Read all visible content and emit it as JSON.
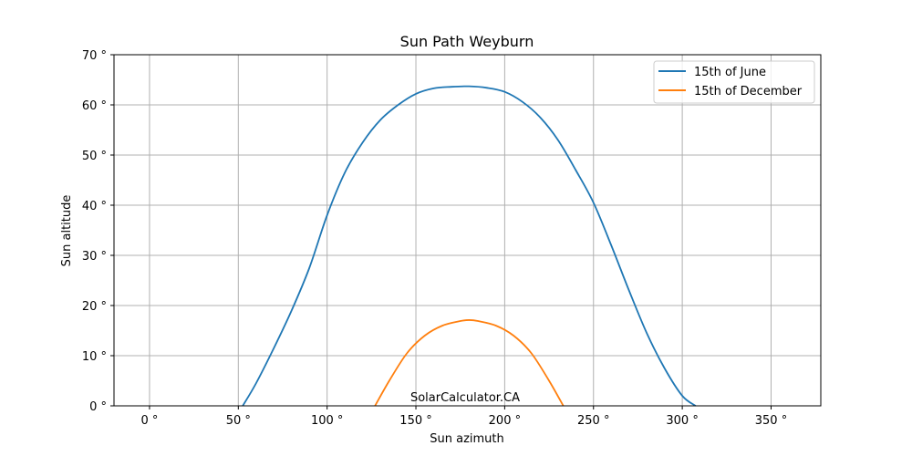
{
  "chart_data": {
    "type": "line",
    "title": "Sun Path Weyburn",
    "xlabel": "Sun azimuth",
    "ylabel": "Sun altitude",
    "xlim": [
      -20,
      378
    ],
    "ylim": [
      0,
      70
    ],
    "xticks": [
      0,
      50,
      100,
      150,
      200,
      250,
      300,
      350
    ],
    "xtick_labels": [
      "0 °",
      "50 °",
      "100 °",
      "150 °",
      "200 °",
      "250 °",
      "300 °",
      "350 °"
    ],
    "yticks": [
      0,
      10,
      20,
      30,
      40,
      50,
      60,
      70
    ],
    "ytick_labels": [
      "0 °",
      "10 °",
      "20 °",
      "30 °",
      "40 °",
      "50 °",
      "60 °",
      "70 °"
    ],
    "grid": true,
    "legend_position": "top-right",
    "series": [
      {
        "name": "15th of June",
        "color": "#1f77b4",
        "x": [
          52.5,
          60,
          70,
          80,
          90,
          100,
          110,
          120,
          130,
          140,
          150,
          160,
          170,
          180,
          190,
          200,
          210,
          220,
          230,
          240,
          250,
          260,
          270,
          280,
          290,
          300,
          307.5
        ],
        "y": [
          0,
          4.5,
          11.5,
          19,
          27.5,
          38,
          46.5,
          52.5,
          57,
          60,
          62.2,
          63.3,
          63.6,
          63.7,
          63.4,
          62.6,
          60.6,
          57.5,
          53,
          47,
          40.5,
          32,
          23,
          14.5,
          7.5,
          2,
          0
        ]
      },
      {
        "name": "15th of December",
        "color": "#ff7f0e",
        "x": [
          127,
          135,
          145,
          155,
          165,
          175,
          180,
          185,
          195,
          205,
          215,
          225,
          233
        ],
        "y": [
          0,
          5,
          10.5,
          14,
          16,
          16.9,
          17.1,
          16.9,
          16,
          14,
          10.5,
          5,
          0
        ]
      }
    ],
    "annotations": [
      "SolarCalculator.CA"
    ]
  }
}
